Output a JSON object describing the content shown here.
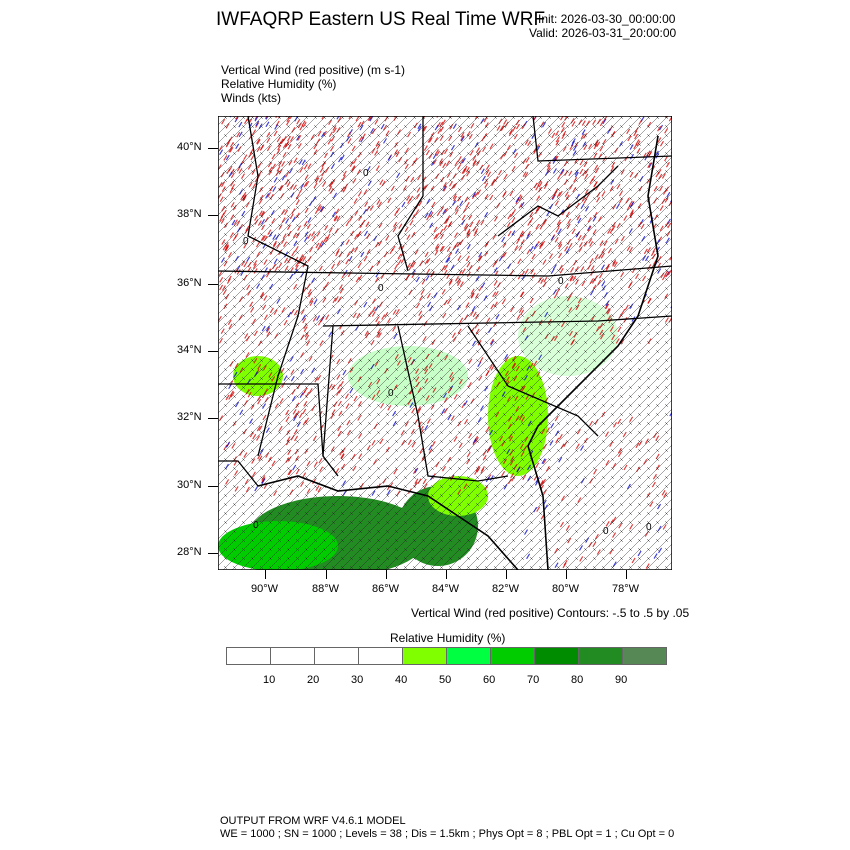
{
  "header": {
    "title": "IWFAQRP Eastern US Real Time WRF",
    "init": "Init: 2026-03-30_00:00:00",
    "valid": "Valid: 2026-03-31_20:00:00"
  },
  "fields": [
    "Vertical Wind (red positive)   (m s-1)",
    "Relative Humidity   (%)",
    "Winds   (kts)"
  ],
  "map": {
    "lat_labels": [
      "40°N",
      "38°N",
      "36°N",
      "34°N",
      "32°N",
      "30°N",
      "28°N"
    ],
    "lon_labels": [
      "90°W",
      "88°W",
      "86°W",
      "84°W",
      "82°W",
      "80°W",
      "78°W"
    ],
    "contour_label": "0",
    "colors": {
      "positive": "#d40000",
      "negative": "#0000cc",
      "border": "#000000"
    }
  },
  "contour_info": "Vertical Wind (red positive) Contours: -.5 to .5 by .05",
  "colorbar": {
    "title": "Relative Humidity  (%)",
    "labels": [
      "10",
      "20",
      "30",
      "40",
      "50",
      "60",
      "70",
      "80",
      "90"
    ],
    "colors": [
      "#ffffff",
      "#ffffff",
      "#ffffff",
      "#ffffff",
      "#80ff00",
      "#00ff40",
      "#00cc00",
      "#008c00",
      "#228b22",
      "#558855"
    ]
  },
  "footer": {
    "line1": "OUTPUT FROM WRF V4.6.1 MODEL",
    "line2": "WE = 1000 ; SN = 1000 ; Levels = 38 ; Dis = 1.5km ; Phys Opt = 8 ; PBL Opt = 1 ; Cu Opt = 0"
  }
}
